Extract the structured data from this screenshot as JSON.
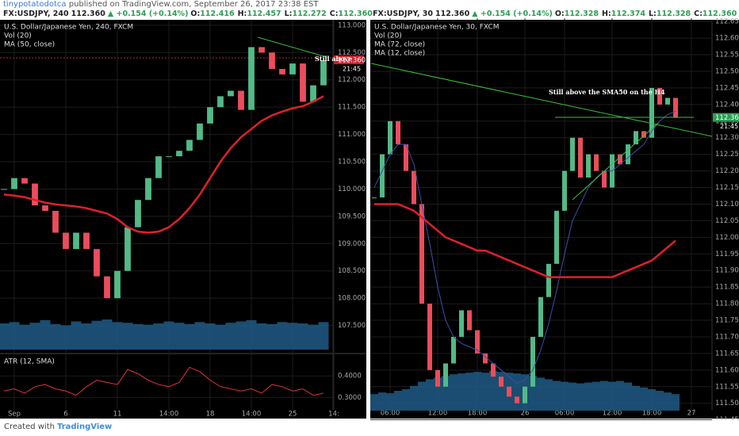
{
  "header": {
    "author": "tinypotatodotca",
    "published": "published on TradingView.com, September 26, 2017 23:38 EST"
  },
  "quotes": [
    {
      "symbol": "FX:USDJPY, 240",
      "price": "112.360",
      "change": "▲ +0.154 (+0.14%)",
      "fields": [
        {
          "label": "O:",
          "value": "112.416"
        },
        {
          "label": "H:",
          "value": "112.457"
        },
        {
          "label": "L:",
          "value": "112.272"
        },
        {
          "label": "C:",
          "value": "112.360"
        }
      ]
    },
    {
      "symbol": "FX:USDJPY, 30",
      "price": "112.360",
      "change": "▲ +0.154 (+0.14%)",
      "fields": [
        {
          "label": "O:",
          "value": "112.328"
        },
        {
          "label": "H:",
          "value": "112.374"
        },
        {
          "label": "L:",
          "value": "112.328"
        },
        {
          "label": "C:",
          "value": "112.360"
        }
      ]
    }
  ],
  "footer": {
    "created": "Created with",
    "brand": "TradingView"
  },
  "chart_data": [
    {
      "type": "candlestick",
      "title": "U.S. Dollar/Japanese Yen, 240, FXCM",
      "up_color": "#53b987",
      "down_color": "#eb4d5c",
      "categories": [
        null,
        "Sep",
        null,
        null,
        null,
        null,
        "6",
        null,
        null,
        null,
        null,
        "11",
        null,
        null,
        null,
        null,
        "14:00",
        null,
        null,
        null,
        "18",
        null,
        null,
        null,
        "14:00",
        null,
        null,
        null,
        "25",
        null,
        null,
        null,
        "14:"
      ],
      "values": [
        110.0,
        110.2,
        110.1,
        109.7,
        109.6,
        109.2,
        108.9,
        109.2,
        108.9,
        108.4,
        108.0,
        108.5,
        109.3,
        109.8,
        110.2,
        110.6,
        110.6,
        110.7,
        110.9,
        111.2,
        111.5,
        111.7,
        111.8,
        111.45,
        112.6,
        112.5,
        112.2,
        112.1,
        112.3,
        111.6,
        111.9,
        112.36,
        null
      ],
      "series": [
        {
          "name": "Vol (20)",
          "style": "columns",
          "color": "#1f5a85",
          "values": [
            40,
            42,
            38,
            41,
            45,
            39,
            37,
            43,
            40,
            44,
            46,
            42,
            41,
            39,
            38,
            40,
            43,
            41,
            39,
            42,
            40,
            38,
            41,
            43,
            45,
            40,
            39,
            42,
            41,
            40,
            38,
            42,
            null
          ]
        },
        {
          "name": "MA (50, close)",
          "style": "line",
          "color": "#e0202a",
          "line_width": 2.5,
          "values": [
            109.9,
            109.88,
            109.85,
            109.8,
            109.75,
            109.72,
            109.7,
            109.68,
            109.65,
            109.6,
            109.55,
            109.45,
            109.3,
            109.22,
            109.2,
            109.22,
            109.3,
            109.45,
            109.65,
            109.9,
            110.2,
            110.5,
            110.75,
            110.95,
            111.1,
            111.25,
            111.35,
            111.42,
            111.48,
            111.52,
            111.6,
            111.7,
            null
          ]
        }
      ],
      "ylim": [
        107.0,
        113.1
      ],
      "yticks": [
        {
          "value": 113.0,
          "label": "113.000"
        },
        {
          "value": 112.5,
          "label": "112.500"
        },
        {
          "value": 112.0,
          "label": "112.000"
        },
        {
          "value": 111.5,
          "label": "111.500"
        },
        {
          "value": 111.0,
          "label": "111.000"
        },
        {
          "value": 110.5,
          "label": "110.500"
        },
        {
          "value": 110.0,
          "label": "110.000"
        },
        {
          "value": 109.5,
          "label": "109.500"
        },
        {
          "value": 109.0,
          "label": "109.000"
        },
        {
          "value": 108.5,
          "label": "108.500"
        },
        {
          "value": 108.0,
          "label": "108.000"
        },
        {
          "value": 107.5,
          "label": "107.500"
        }
      ],
      "last_price": {
        "value": 112.36,
        "label": "112.360",
        "color": "#c8202c"
      },
      "last_time": "21:45",
      "annotation": "Still above",
      "grid": true
    },
    {
      "type": "line",
      "title": "ATR (12, SMA)",
      "color": "#e03040",
      "values": [
        0.33,
        0.34,
        0.32,
        0.35,
        0.36,
        0.34,
        0.33,
        0.31,
        0.35,
        0.38,
        0.37,
        0.36,
        0.43,
        0.41,
        0.38,
        0.36,
        0.35,
        0.37,
        0.44,
        0.42,
        0.38,
        0.35,
        0.34,
        0.33,
        0.34,
        0.32,
        0.36,
        0.35,
        0.33,
        0.34,
        0.31,
        0.32,
        null
      ],
      "ylim": [
        0.25,
        0.5
      ],
      "yticks": [
        {
          "value": 0.4,
          "label": "0.4000"
        },
        {
          "value": 0.3,
          "label": "0.3000"
        }
      ],
      "grid": true
    },
    {
      "type": "candlestick",
      "title": "U.S. Dollar/Japanese Yen, 30, FXCM",
      "up_color": "#53b987",
      "down_color": "#eb4d5c",
      "categories": [
        null,
        null,
        "06:00",
        null,
        null,
        null,
        null,
        null,
        "12:00",
        null,
        null,
        null,
        null,
        "18:00",
        null,
        null,
        null,
        null,
        null,
        "26",
        null,
        null,
        null,
        null,
        "06:00",
        null,
        null,
        null,
        null,
        null,
        "12:00",
        null,
        null,
        null,
        null,
        "18:00",
        null,
        null,
        null,
        null,
        "27"
      ],
      "values": [
        112.12,
        112.25,
        112.35,
        112.28,
        112.2,
        112.1,
        111.8,
        111.6,
        111.55,
        111.62,
        111.7,
        111.78,
        111.72,
        111.65,
        111.62,
        111.58,
        111.55,
        111.52,
        111.5,
        111.55,
        111.7,
        111.82,
        111.92,
        112.08,
        112.2,
        112.3,
        112.18,
        112.25,
        112.2,
        112.15,
        112.25,
        112.22,
        112.28,
        112.32,
        112.3,
        112.45,
        112.4,
        112.42,
        112.36,
        null,
        null
      ],
      "series": [
        {
          "name": "Vol (20)",
          "style": "columns",
          "color": "#1f5a85",
          "values": [
            20,
            22,
            21,
            24,
            26,
            30,
            35,
            38,
            40,
            42,
            44,
            45,
            46,
            47,
            46,
            48,
            47,
            46,
            45,
            44,
            42,
            40,
            38,
            36,
            35,
            34,
            33,
            34,
            35,
            36,
            35,
            36,
            34,
            30,
            28,
            26,
            24,
            22,
            20,
            null,
            null
          ]
        },
        {
          "name": "MA (72, close)",
          "style": "line",
          "color": "#e0202a",
          "line_width": 2.5,
          "values": [
            112.1,
            112.1,
            112.1,
            112.1,
            112.09,
            112.08,
            112.06,
            112.04,
            112.02,
            112.0,
            111.99,
            111.98,
            111.97,
            111.96,
            111.96,
            111.95,
            111.94,
            111.93,
            111.92,
            111.91,
            111.9,
            111.89,
            111.88,
            111.88,
            111.88,
            111.88,
            111.88,
            111.88,
            111.88,
            111.88,
            111.88,
            111.89,
            111.9,
            111.91,
            111.92,
            111.93,
            111.95,
            111.97,
            111.99,
            null,
            null
          ]
        },
        {
          "name": "MA (12, close)",
          "style": "line",
          "color": "#3b4fa8",
          "line_width": 1,
          "values": [
            112.15,
            112.2,
            112.25,
            112.28,
            112.28,
            112.22,
            112.1,
            111.98,
            111.85,
            111.75,
            111.7,
            111.68,
            111.67,
            111.66,
            111.64,
            111.62,
            111.6,
            111.58,
            111.56,
            111.57,
            111.6,
            111.66,
            111.74,
            111.84,
            111.95,
            112.05,
            112.1,
            112.15,
            112.18,
            112.2,
            112.2,
            112.22,
            112.24,
            112.26,
            112.28,
            112.32,
            112.35,
            112.37,
            112.38,
            null,
            null
          ]
        }
      ],
      "ylim": [
        111.43,
        112.66
      ],
      "yticks": [
        {
          "value": 112.65,
          "label": "112.650"
        },
        {
          "value": 112.6,
          "label": "112.600"
        },
        {
          "value": 112.55,
          "label": "112.550"
        },
        {
          "value": 112.5,
          "label": "112.500"
        },
        {
          "value": 112.45,
          "label": "112.450"
        },
        {
          "value": 112.4,
          "label": "112.400"
        },
        {
          "value": 112.35,
          "label": "112.350"
        },
        {
          "value": 112.3,
          "label": "112.300"
        },
        {
          "value": 112.25,
          "label": "112.250"
        },
        {
          "value": 112.2,
          "label": "112.200"
        },
        {
          "value": 112.15,
          "label": "112.150"
        },
        {
          "value": 112.1,
          "label": "112.100"
        },
        {
          "value": 112.05,
          "label": "112.050"
        },
        {
          "value": 112.0,
          "label": "112.000"
        },
        {
          "value": 111.95,
          "label": "111.950"
        },
        {
          "value": 111.9,
          "label": "111.900"
        },
        {
          "value": 111.85,
          "label": "111.850"
        },
        {
          "value": 111.8,
          "label": "111.800"
        },
        {
          "value": 111.75,
          "label": "111.750"
        },
        {
          "value": 111.7,
          "label": "111.700"
        },
        {
          "value": 111.65,
          "label": "111.650"
        },
        {
          "value": 111.6,
          "label": "111.600"
        },
        {
          "value": 111.55,
          "label": "111.550"
        },
        {
          "value": 111.5,
          "label": "111.500"
        },
        {
          "value": 111.45,
          "label": "111.450"
        }
      ],
      "last_price": {
        "value": 112.36,
        "label": "112.360",
        "color": "#2e9e56"
      },
      "last_time": "21:45",
      "annotation": "Still above the SMA50 on the H4",
      "grid": true
    }
  ]
}
